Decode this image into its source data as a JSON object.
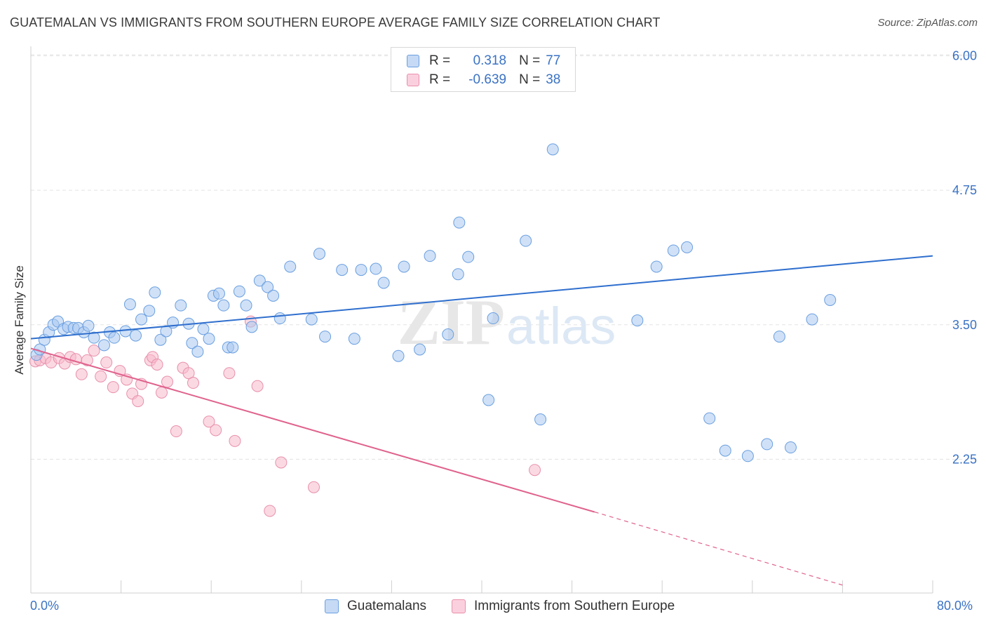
{
  "header": {
    "title": "GUATEMALAN VS IMMIGRANTS FROM SOUTHERN EUROPE AVERAGE FAMILY SIZE CORRELATION CHART",
    "source": "Source: ZipAtlas.com"
  },
  "watermark": "ZIPatlas",
  "legend_top": [
    {
      "r_label": "R =",
      "r_value": "0.318",
      "n_label": "N =",
      "n_value": "77"
    },
    {
      "r_label": "R =",
      "r_value": "-0.639",
      "n_label": "N =",
      "n_value": "38"
    }
  ],
  "bottom_legend": [
    "Guatemalans",
    "Immigrants from Southern Europe"
  ],
  "x_tick_labels": [
    "0.0%",
    "80.0%"
  ],
  "chart_data": {
    "type": "scatter",
    "title": "GUATEMALAN VS IMMIGRANTS FROM SOUTHERN EUROPE AVERAGE FAMILY SIZE CORRELATION CHART",
    "xlabel": "",
    "ylabel": "Average Family Size",
    "xlim": [
      0,
      80
    ],
    "ylim": [
      1.0,
      6.25
    ],
    "y_ticks": [
      2.25,
      3.5,
      4.75,
      6.0
    ],
    "y_tick_labels": [
      "2.25",
      "3.50",
      "4.75",
      "6.00"
    ],
    "grid": true,
    "legend_position": "top-center",
    "colors": {
      "blue_fill": "#a9c8f0",
      "blue_stroke": "#6a9fe0",
      "blue_line": "#2f6fce",
      "pink_fill": "#f7b9cc",
      "pink_stroke": "#e890ab",
      "pink_line": "#e0628d",
      "tick_label": "#3a72c4"
    },
    "series": [
      {
        "name": "Guatemalans",
        "r": 0.318,
        "n": 77,
        "trend": {
          "x": [
            0,
            80
          ],
          "y": [
            3.37,
            4.14
          ]
        },
        "points": [
          [
            0.5,
            3.22
          ],
          [
            0.8,
            3.27
          ],
          [
            1.2,
            3.36
          ],
          [
            1.6,
            3.43
          ],
          [
            2.0,
            3.5
          ],
          [
            2.4,
            3.53
          ],
          [
            2.9,
            3.46
          ],
          [
            3.3,
            3.48
          ],
          [
            3.8,
            3.47
          ],
          [
            4.2,
            3.47
          ],
          [
            4.7,
            3.43
          ],
          [
            5.1,
            3.49
          ],
          [
            5.6,
            3.38
          ],
          [
            6.5,
            3.31
          ],
          [
            7.0,
            3.43
          ],
          [
            7.4,
            3.38
          ],
          [
            8.4,
            3.44
          ],
          [
            8.8,
            3.69
          ],
          [
            9.3,
            3.4
          ],
          [
            9.8,
            3.55
          ],
          [
            10.5,
            3.63
          ],
          [
            11.0,
            3.8
          ],
          [
            11.5,
            3.36
          ],
          [
            12.0,
            3.44
          ],
          [
            12.6,
            3.52
          ],
          [
            13.3,
            3.68
          ],
          [
            14.0,
            3.51
          ],
          [
            14.3,
            3.33
          ],
          [
            14.8,
            3.25
          ],
          [
            15.3,
            3.46
          ],
          [
            15.8,
            3.37
          ],
          [
            16.2,
            3.77
          ],
          [
            16.7,
            3.79
          ],
          [
            17.1,
            3.68
          ],
          [
            17.5,
            3.29
          ],
          [
            17.9,
            3.29
          ],
          [
            18.5,
            3.81
          ],
          [
            19.1,
            3.68
          ],
          [
            19.6,
            3.48
          ],
          [
            20.3,
            3.91
          ],
          [
            21.0,
            3.85
          ],
          [
            21.5,
            3.77
          ],
          [
            22.1,
            3.56
          ],
          [
            23.0,
            4.04
          ],
          [
            24.9,
            3.55
          ],
          [
            25.6,
            4.16
          ],
          [
            26.1,
            3.39
          ],
          [
            27.6,
            4.01
          ],
          [
            28.7,
            3.37
          ],
          [
            29.3,
            4.01
          ],
          [
            31.3,
            3.89
          ],
          [
            32.6,
            3.21
          ],
          [
            33.1,
            4.04
          ],
          [
            34.5,
            3.27
          ],
          [
            35.4,
            4.14
          ],
          [
            37.0,
            3.41
          ],
          [
            38.0,
            4.45
          ],
          [
            38.8,
            4.13
          ],
          [
            40.6,
            2.8
          ],
          [
            41.0,
            3.56
          ],
          [
            43.9,
            4.28
          ],
          [
            46.3,
            5.13
          ],
          [
            53.8,
            3.54
          ],
          [
            55.5,
            4.04
          ],
          [
            57.0,
            4.19
          ],
          [
            58.2,
            4.22
          ],
          [
            60.2,
            2.63
          ],
          [
            61.6,
            2.33
          ],
          [
            63.6,
            2.28
          ],
          [
            65.3,
            2.39
          ],
          [
            67.4,
            2.36
          ],
          [
            45.2,
            2.62
          ],
          [
            66.4,
            3.39
          ],
          [
            69.3,
            3.55
          ],
          [
            70.9,
            3.73
          ],
          [
            37.9,
            3.97
          ],
          [
            30.6,
            4.02
          ]
        ]
      },
      {
        "name": "Immigrants from Southern Europe",
        "r": -0.639,
        "n": 38,
        "trend": {
          "x": [
            0,
            50
          ],
          "y": [
            3.28,
            1.76
          ]
        },
        "trend_dashed": {
          "x": [
            50,
            72
          ],
          "y": [
            1.76,
            1.08
          ]
        },
        "points": [
          [
            0.4,
            3.16
          ],
          [
            0.8,
            3.17
          ],
          [
            1.3,
            3.19
          ],
          [
            1.8,
            3.15
          ],
          [
            2.5,
            3.19
          ],
          [
            3.0,
            3.14
          ],
          [
            3.5,
            3.2
          ],
          [
            4.0,
            3.18
          ],
          [
            4.5,
            3.04
          ],
          [
            5.0,
            3.17
          ],
          [
            5.6,
            3.26
          ],
          [
            6.2,
            3.02
          ],
          [
            6.7,
            3.15
          ],
          [
            7.3,
            2.92
          ],
          [
            7.9,
            3.07
          ],
          [
            8.5,
            2.99
          ],
          [
            9.0,
            2.86
          ],
          [
            9.5,
            2.79
          ],
          [
            9.8,
            2.95
          ],
          [
            10.6,
            3.17
          ],
          [
            10.8,
            3.2
          ],
          [
            11.2,
            3.13
          ],
          [
            11.6,
            2.87
          ],
          [
            12.1,
            2.97
          ],
          [
            12.9,
            2.51
          ],
          [
            13.5,
            3.1
          ],
          [
            14.0,
            3.05
          ],
          [
            14.4,
            2.96
          ],
          [
            15.8,
            2.6
          ],
          [
            16.4,
            2.52
          ],
          [
            17.6,
            3.05
          ],
          [
            18.1,
            2.42
          ],
          [
            19.5,
            3.53
          ],
          [
            20.1,
            2.93
          ],
          [
            21.2,
            1.77
          ],
          [
            22.2,
            2.22
          ],
          [
            25.1,
            1.99
          ],
          [
            44.7,
            2.15
          ]
        ]
      }
    ]
  }
}
